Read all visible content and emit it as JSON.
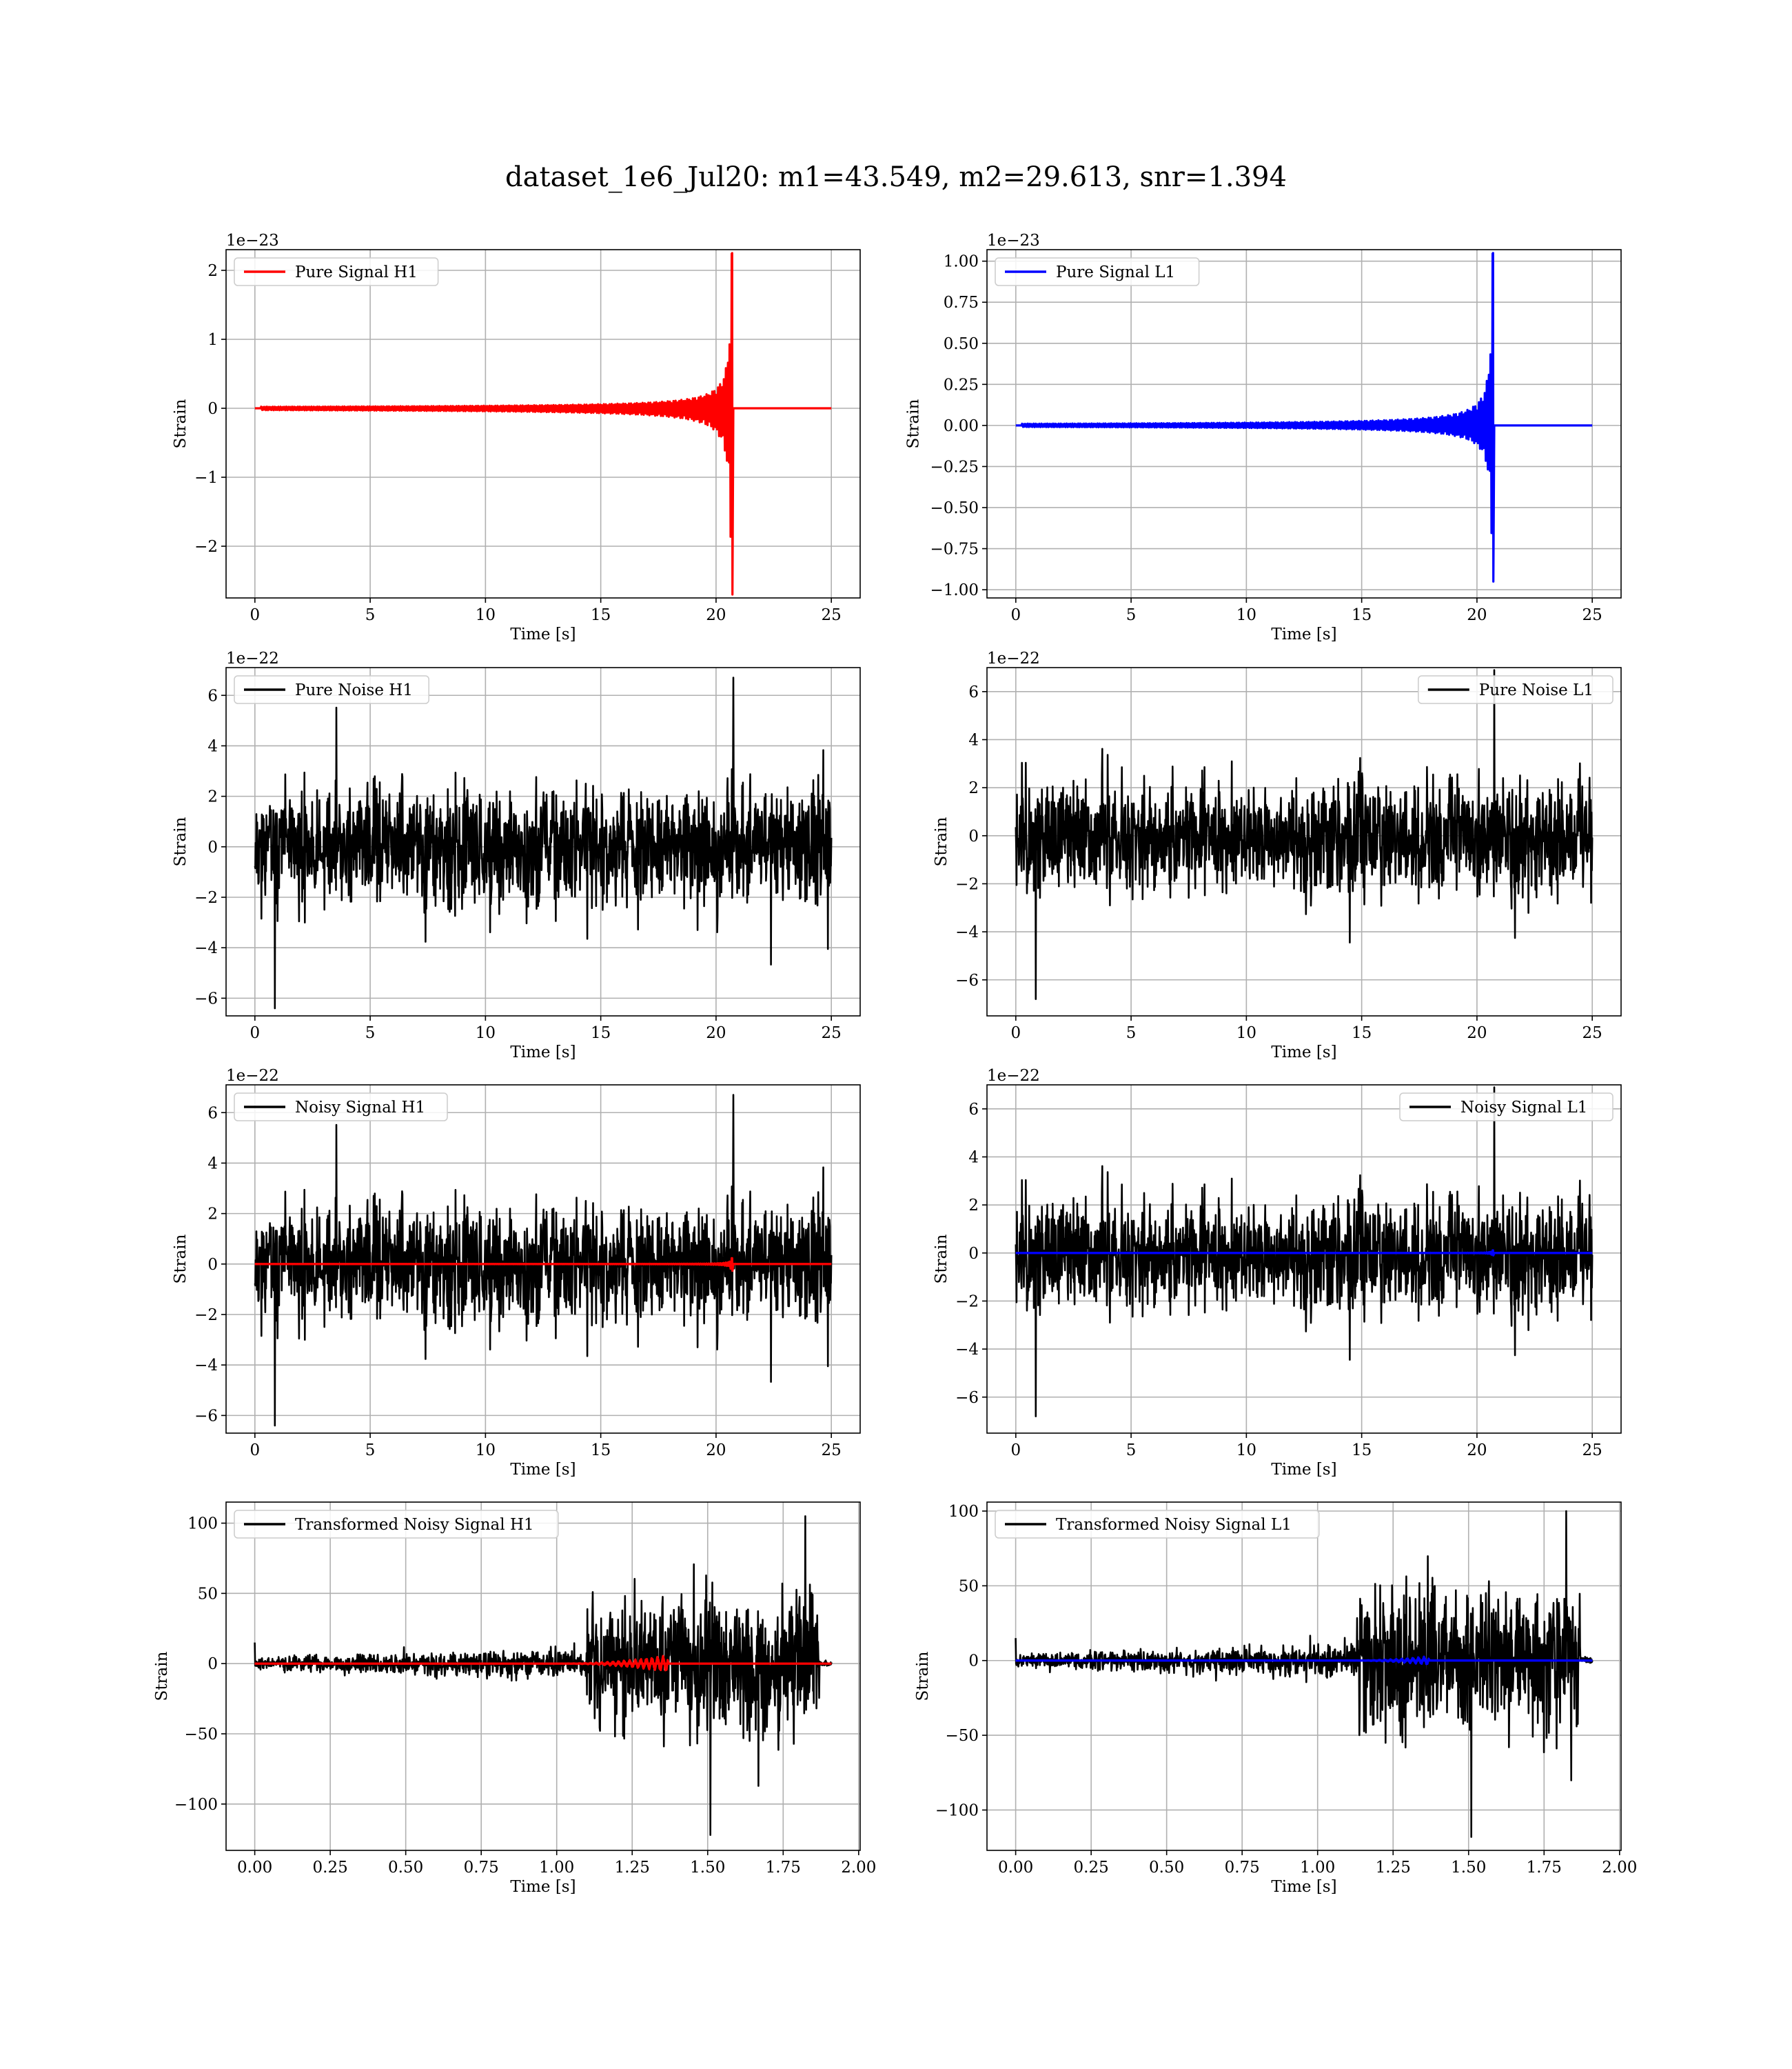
{
  "figure": {
    "title": "dataset_1e6_Jul20: m1=43.549, m2=29.613, snr=1.394"
  },
  "colors": {
    "h1_signal": "#ff0000",
    "l1_signal": "#0000ff",
    "noise": "#000000"
  },
  "chart_data": [
    {
      "type": "line",
      "name": "pure-signal-h1",
      "legend": "Pure Signal H1",
      "legend_loc": "upper left",
      "xlabel": "Time [s]",
      "ylabel": "Strain",
      "offset_text": "1e−23",
      "xlim": [
        -1.25,
        26.25
      ],
      "ylim": [
        -2.75,
        2.3
      ],
      "xticks": [
        0,
        5,
        10,
        15,
        20,
        25
      ],
      "xtick_labels": [
        "0",
        "5",
        "10",
        "15",
        "20",
        "25"
      ],
      "yticks": [
        -2,
        -1,
        0,
        1,
        2
      ],
      "ytick_labels": [
        "−2",
        "−1",
        "0",
        "1",
        "2"
      ],
      "grid": true,
      "series": [
        {
          "kind": "chirp",
          "color": "#ff0000",
          "duration": 25,
          "merger": 20.7,
          "max": 2.25,
          "min": -2.7
        }
      ]
    },
    {
      "type": "line",
      "name": "pure-signal-l1",
      "legend": "Pure Signal L1",
      "legend_loc": "upper left",
      "xlabel": "Time [s]",
      "ylabel": "Strain",
      "offset_text": "1e−23",
      "xlim": [
        -1.25,
        26.25
      ],
      "ylim": [
        -1.05,
        1.07
      ],
      "xticks": [
        0,
        5,
        10,
        15,
        20,
        25
      ],
      "xtick_labels": [
        "0",
        "5",
        "10",
        "15",
        "20",
        "25"
      ],
      "yticks": [
        -1.0,
        -0.75,
        -0.5,
        -0.25,
        0,
        0.25,
        0.5,
        0.75,
        1.0
      ],
      "ytick_labels": [
        "−1.00",
        "−0.75",
        "−0.50",
        "−0.25",
        "0.00",
        "0.25",
        "0.50",
        "0.75",
        "1.00"
      ],
      "grid": true,
      "series": [
        {
          "kind": "chirp",
          "color": "#0000ff",
          "duration": 25,
          "merger": 20.7,
          "max": 1.05,
          "min": -0.95
        }
      ]
    },
    {
      "type": "line",
      "name": "pure-noise-h1",
      "legend": "Pure Noise H1",
      "legend_loc": "upper left",
      "xlabel": "Time [s]",
      "ylabel": "Strain",
      "offset_text": "1e−22",
      "xlim": [
        -1.25,
        26.25
      ],
      "ylim": [
        -6.7,
        7.1
      ],
      "xticks": [
        0,
        5,
        10,
        15,
        20,
        25
      ],
      "xtick_labels": [
        "0",
        "5",
        "10",
        "15",
        "20",
        "25"
      ],
      "yticks": [
        -6,
        -4,
        -2,
        0,
        2,
        4,
        6
      ],
      "ytick_labels": [
        "−6",
        "−4",
        "−2",
        "0",
        "2",
        "4",
        "6"
      ],
      "grid": true,
      "series": [
        {
          "kind": "noise",
          "color": "#000000",
          "duration": 25,
          "max": 6.7,
          "min": -6.4,
          "seed": 11
        }
      ]
    },
    {
      "type": "line",
      "name": "pure-noise-l1",
      "legend": "Pure Noise L1",
      "legend_loc": "upper right",
      "xlabel": "Time [s]",
      "ylabel": "Strain",
      "offset_text": "1e−22",
      "xlim": [
        -1.25,
        26.25
      ],
      "ylim": [
        -7.5,
        7.0
      ],
      "xticks": [
        0,
        5,
        10,
        15,
        20,
        25
      ],
      "xtick_labels": [
        "0",
        "5",
        "10",
        "15",
        "20",
        "25"
      ],
      "yticks": [
        -6,
        -4,
        -2,
        0,
        2,
        4,
        6
      ],
      "ytick_labels": [
        "−6",
        "−4",
        "−2",
        "0",
        "2",
        "4",
        "6"
      ],
      "grid": true,
      "series": [
        {
          "kind": "noise",
          "color": "#000000",
          "duration": 25,
          "max": 6.9,
          "min": -6.8,
          "seed": 23
        }
      ]
    },
    {
      "type": "line",
      "name": "noisy-signal-h1",
      "legend": "Noisy Signal H1",
      "legend_loc": "upper left",
      "xlabel": "Time [s]",
      "ylabel": "Strain",
      "offset_text": "1e−22",
      "xlim": [
        -1.25,
        26.25
      ],
      "ylim": [
        -6.7,
        7.1
      ],
      "xticks": [
        0,
        5,
        10,
        15,
        20,
        25
      ],
      "xtick_labels": [
        "0",
        "5",
        "10",
        "15",
        "20",
        "25"
      ],
      "yticks": [
        -6,
        -4,
        -2,
        0,
        2,
        4,
        6
      ],
      "ytick_labels": [
        "−6",
        "−4",
        "−2",
        "0",
        "2",
        "4",
        "6"
      ],
      "grid": true,
      "series": [
        {
          "kind": "noise",
          "color": "#000000",
          "duration": 25,
          "max": 6.7,
          "min": -6.4,
          "seed": 11
        },
        {
          "kind": "chirp",
          "color": "#ff0000",
          "duration": 25,
          "merger": 20.7,
          "max": 0.23,
          "min": -0.27
        }
      ]
    },
    {
      "type": "line",
      "name": "noisy-signal-l1",
      "legend": "Noisy Signal L1",
      "legend_loc": "upper right",
      "xlabel": "Time [s]",
      "ylabel": "Strain",
      "offset_text": "1e−22",
      "xlim": [
        -1.25,
        26.25
      ],
      "ylim": [
        -7.5,
        7.0
      ],
      "xticks": [
        0,
        5,
        10,
        15,
        20,
        25
      ],
      "xtick_labels": [
        "0",
        "5",
        "10",
        "15",
        "20",
        "25"
      ],
      "yticks": [
        -6,
        -4,
        -2,
        0,
        2,
        4,
        6
      ],
      "ytick_labels": [
        "−6",
        "−4",
        "−2",
        "0",
        "2",
        "4",
        "6"
      ],
      "grid": true,
      "series": [
        {
          "kind": "noise",
          "color": "#000000",
          "duration": 25,
          "max": 6.9,
          "min": -6.8,
          "seed": 23
        },
        {
          "kind": "chirp",
          "color": "#0000ff",
          "duration": 25,
          "merger": 20.7,
          "max": 0.11,
          "min": -0.1
        }
      ]
    },
    {
      "type": "line",
      "name": "transformed-noisy-signal-h1",
      "legend": "Transformed Noisy Signal H1",
      "legend_loc": "upper left",
      "xlabel": "Time [s]",
      "ylabel": "Strain",
      "offset_text": "",
      "xlim": [
        -0.095,
        2.005
      ],
      "ylim": [
        -133,
        115
      ],
      "xticks": [
        0,
        0.25,
        0.5,
        0.75,
        1.0,
        1.25,
        1.5,
        1.75,
        2.0
      ],
      "xtick_labels": [
        "0.00",
        "0.25",
        "0.50",
        "0.75",
        "1.00",
        "1.25",
        "1.50",
        "1.75",
        "2.00"
      ],
      "yticks": [
        -100,
        -50,
        0,
        50,
        100
      ],
      "ytick_labels": [
        "−100",
        "−50",
        "0",
        "50",
        "100"
      ],
      "grid": true,
      "series": [
        {
          "kind": "tnoise",
          "color": "#000000",
          "duration": 1.91,
          "step": 1.1,
          "end": 1.87,
          "max": 105,
          "min": -122,
          "seed": 37
        },
        {
          "kind": "tchirp",
          "color": "#ff0000",
          "duration": 1.91,
          "start": 1.0,
          "merger": 1.37,
          "amp": 6
        }
      ]
    },
    {
      "type": "line",
      "name": "transformed-noisy-signal-l1",
      "legend": "Transformed Noisy Signal L1",
      "legend_loc": "upper left",
      "xlabel": "Time [s]",
      "ylabel": "Strain",
      "offset_text": "",
      "xlim": [
        -0.095,
        2.005
      ],
      "ylim": [
        -127,
        106
      ],
      "xticks": [
        0,
        0.25,
        0.5,
        0.75,
        1.0,
        1.25,
        1.5,
        1.75,
        2.0
      ],
      "xtick_labels": [
        "0.00",
        "0.25",
        "0.50",
        "0.75",
        "1.00",
        "1.25",
        "1.50",
        "1.75",
        "2.00"
      ],
      "yticks": [
        -100,
        -50,
        0,
        50,
        100
      ],
      "ytick_labels": [
        "−100",
        "−50",
        "0",
        "50",
        "100"
      ],
      "grid": true,
      "series": [
        {
          "kind": "tnoise",
          "color": "#000000",
          "duration": 1.91,
          "step": 1.13,
          "end": 1.87,
          "max": 100,
          "min": -118,
          "seed": 53
        },
        {
          "kind": "tchirp",
          "color": "#0000ff",
          "duration": 1.91,
          "start": 1.1,
          "merger": 1.37,
          "amp": 3
        }
      ]
    }
  ]
}
